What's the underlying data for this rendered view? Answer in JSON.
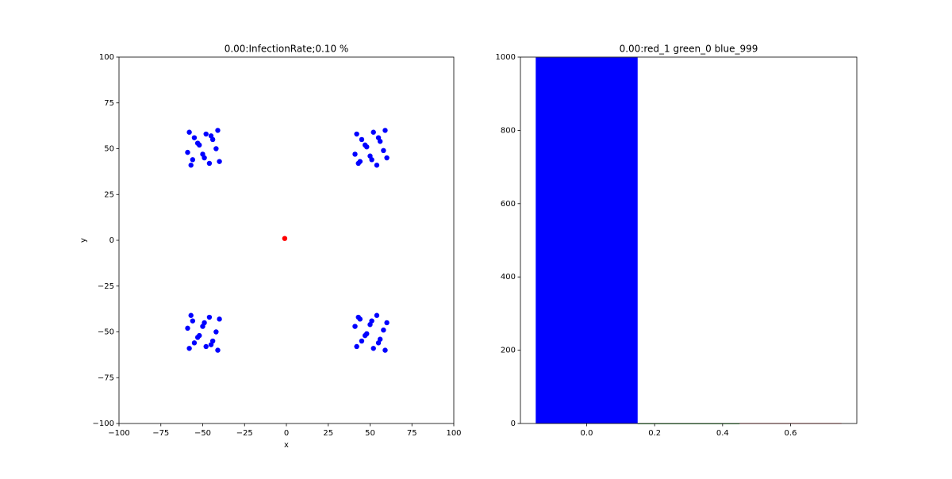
{
  "chart_data": [
    {
      "type": "scatter",
      "title": "0.00:InfectionRate;0.10 %",
      "xlabel": "x",
      "ylabel": "y",
      "xlim": [
        -100,
        100
      ],
      "ylim": [
        -100,
        100
      ],
      "xticks": [
        {
          "value": -100,
          "label": "−100"
        },
        {
          "value": -75,
          "label": "−75"
        },
        {
          "value": -50,
          "label": "−50"
        },
        {
          "value": -25,
          "label": "−25"
        },
        0,
        25,
        50,
        75,
        100
      ],
      "yticks": [
        {
          "value": -100,
          "label": "−100"
        },
        {
          "value": -75,
          "label": "−75"
        },
        {
          "value": -50,
          "label": "−50"
        },
        {
          "value": -25,
          "label": "−25"
        },
        0,
        25,
        50,
        75,
        100
      ],
      "series": [
        {
          "color": "#0000ff",
          "x": [
            -58,
            -55,
            -52,
            -48,
            -44,
            -41,
            -59,
            -56,
            -50,
            -46,
            -42,
            -57,
            -53,
            -49,
            -45,
            -40,
            42,
            45,
            48,
            52,
            56,
            59,
            41,
            44,
            50,
            54,
            58,
            43,
            47,
            51,
            55,
            60,
            -58,
            -55,
            -52,
            -48,
            -44,
            -41,
            -59,
            -56,
            -50,
            -46,
            -42,
            -57,
            -53,
            -49,
            -45,
            -40,
            42,
            45,
            48,
            52,
            56,
            59,
            41,
            44,
            50,
            54,
            58,
            43,
            47,
            51,
            55,
            60
          ],
          "values": [
            59,
            56,
            52,
            58,
            55,
            60,
            48,
            44,
            47,
            42,
            50,
            41,
            53,
            45,
            57,
            43,
            58,
            55,
            51,
            59,
            54,
            60,
            47,
            43,
            46,
            41,
            49,
            42,
            52,
            44,
            56,
            45,
            -59,
            -56,
            -52,
            -58,
            -55,
            -60,
            -48,
            -44,
            -47,
            -42,
            -50,
            -41,
            -53,
            -45,
            -57,
            -43,
            -58,
            -55,
            -51,
            -59,
            -54,
            -60,
            -47,
            -43,
            -46,
            -41,
            -49,
            -42,
            -52,
            -44,
            -56,
            -45
          ]
        },
        {
          "color": "#ff0000",
          "x": [
            -1
          ],
          "values": [
            1
          ]
        }
      ]
    },
    {
      "type": "bar",
      "title": "0.00:red_1 green_0 blue_999",
      "xlim": [
        -0.195,
        0.795
      ],
      "ylim": [
        0,
        1000
      ],
      "xticks": [
        {
          "value": 0,
          "label": "0.0"
        },
        0.2,
        0.4,
        0.6
      ],
      "yticks": [
        0,
        200,
        400,
        600,
        800,
        1000
      ],
      "x": [
        0,
        0.3,
        0.6
      ],
      "values": [
        999,
        0,
        1
      ],
      "width": 0.3,
      "colors": [
        "#0000ff",
        "#008000",
        "#ff0000"
      ]
    }
  ]
}
